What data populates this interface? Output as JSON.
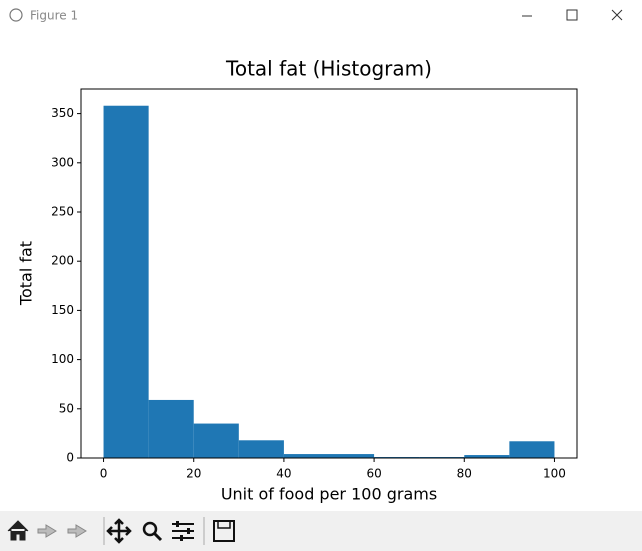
{
  "window": {
    "title": "Figure 1"
  },
  "chart_data": {
    "type": "histogram",
    "title": "Total fat (Histogram)",
    "x_label": "Unit of food per 100 grams",
    "y_label": "Total fat",
    "bins": [
      0,
      10,
      20,
      30,
      40,
      50,
      60,
      70,
      80,
      90,
      100
    ],
    "values": [
      358,
      59,
      35,
      18,
      4,
      4,
      1,
      1,
      3,
      17
    ],
    "color": "#1f77b4",
    "xlim": [
      -5,
      105
    ],
    "xticks": [
      0,
      20,
      40,
      60,
      80,
      100
    ],
    "ylim": [
      0,
      375
    ],
    "yticks": [
      0,
      50,
      100,
      150,
      200,
      250,
      300,
      350
    ]
  }
}
